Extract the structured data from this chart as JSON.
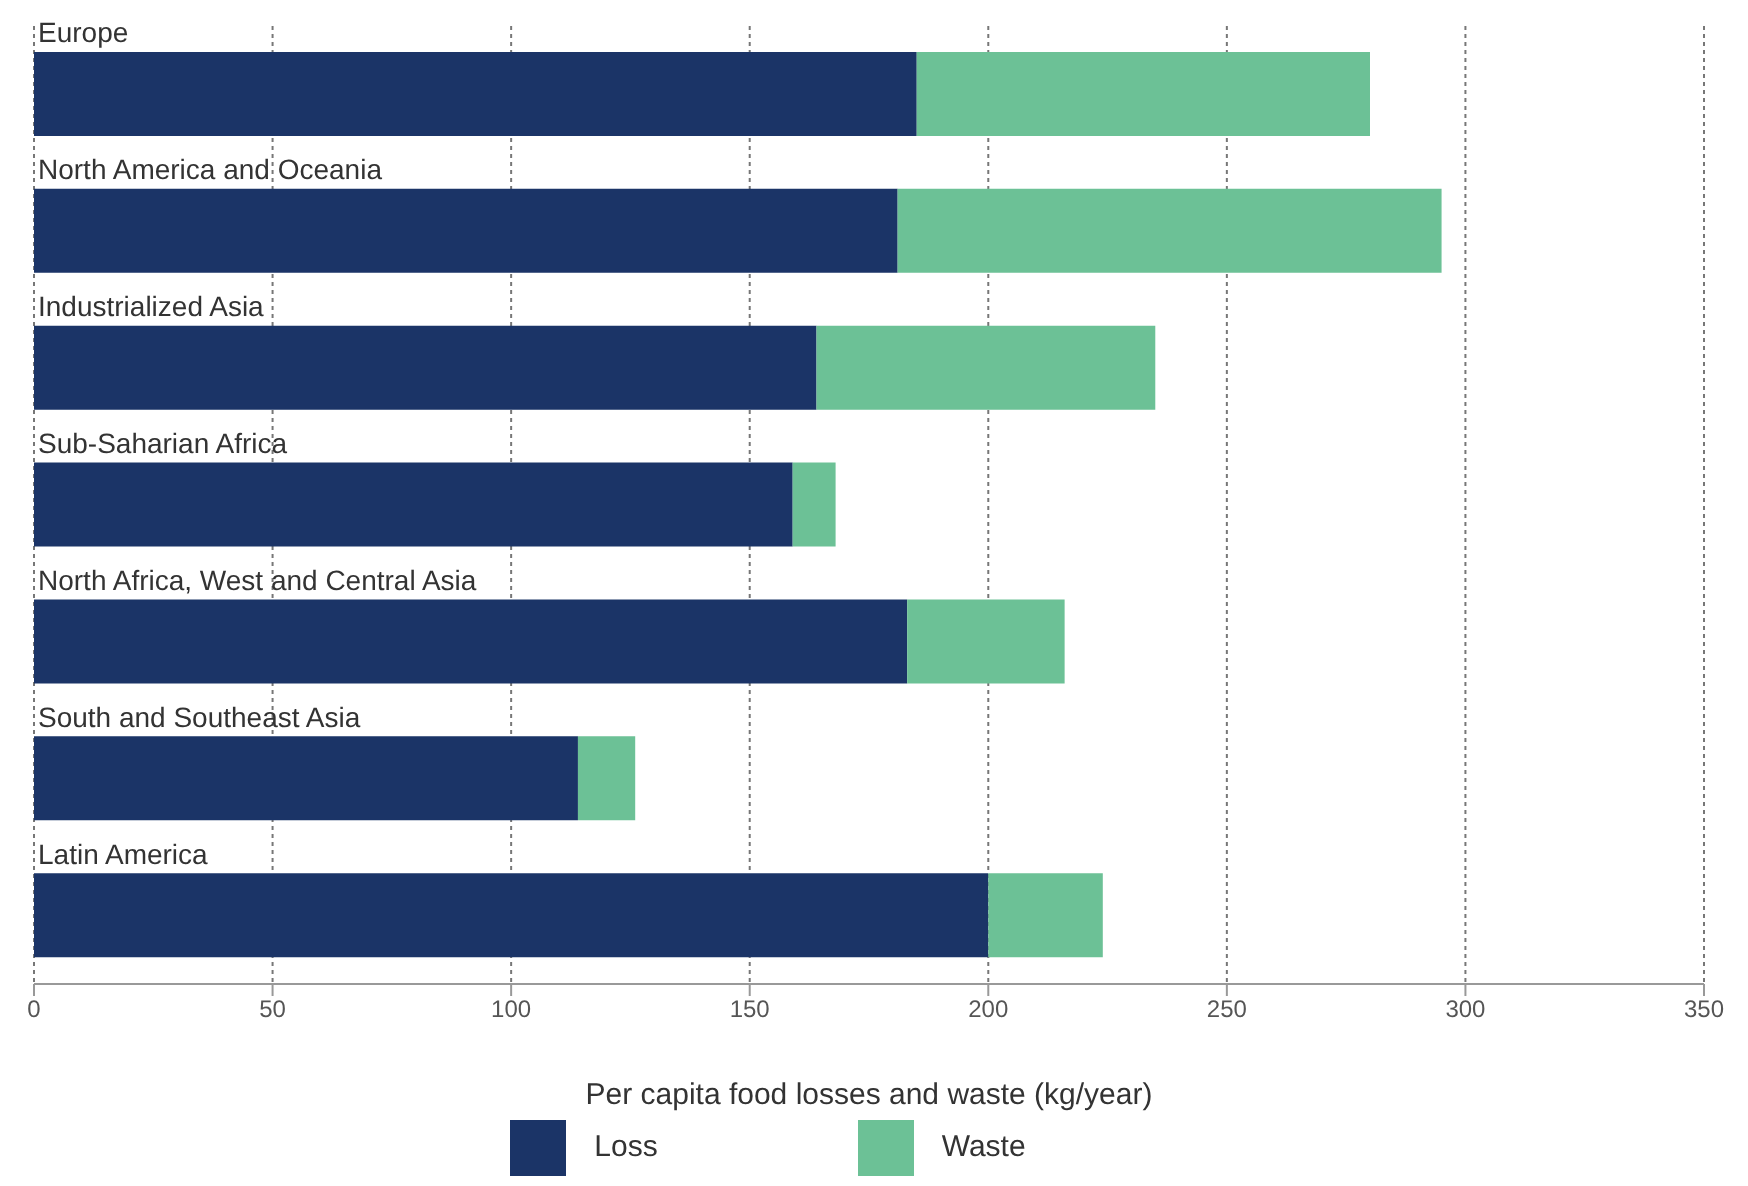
{
  "chart_data": {
    "type": "bar",
    "orientation": "horizontal",
    "stacked": true,
    "categories": [
      "Europe",
      "North America and Oceania",
      "Industrialized Asia",
      "Sub-Saharian Africa",
      "North Africa, West and Central Asia",
      "South and Southeast Asia",
      "Latin America"
    ],
    "series": [
      {
        "name": "Loss",
        "color": "#1b3467",
        "values": [
          185,
          181,
          164,
          159,
          183,
          114,
          200
        ]
      },
      {
        "name": "Waste",
        "color": "#6cc196",
        "values": [
          95,
          114,
          71,
          9,
          33,
          12,
          24
        ]
      }
    ],
    "xlabel": "Per capita food losses and waste (kg/year)",
    "xlim": [
      0,
      350
    ],
    "xticks": [
      0,
      50,
      100,
      150,
      200,
      250,
      300,
      350
    ],
    "grid": "x",
    "legend": "bottom"
  }
}
